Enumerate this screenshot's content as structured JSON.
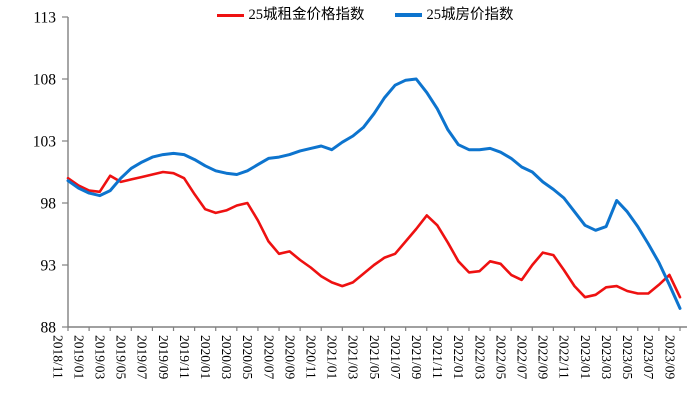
{
  "chart_data": {
    "type": "line",
    "title": "",
    "xlabel": "",
    "ylabel": "",
    "ylim": [
      88,
      113
    ],
    "y_ticks": [
      88,
      93,
      98,
      103,
      108,
      113
    ],
    "grid": false,
    "legend_position": "top-center",
    "axis_color": "#808080",
    "background_color": "#ffffff",
    "x_tick_labels": [
      "2018/11",
      "2019/01",
      "2019/03",
      "2019/05",
      "2019/07",
      "2019/09",
      "2019/11",
      "2020/01",
      "2020/03",
      "2020/05",
      "2020/07",
      "2020/09",
      "2020/11",
      "2021/01",
      "2021/03",
      "2021/05",
      "2021/07",
      "2021/09",
      "2021/11",
      "2022/01",
      "2022/03",
      "2022/05",
      "2022/07",
      "2022/09",
      "2022/11",
      "2023/01",
      "2023/03",
      "2023/05",
      "2023/07",
      "2023/09"
    ],
    "x_monthly": [
      "2018/11",
      "2018/12",
      "2019/01",
      "2019/02",
      "2019/03",
      "2019/04",
      "2019/05",
      "2019/06",
      "2019/07",
      "2019/08",
      "2019/09",
      "2019/10",
      "2019/11",
      "2019/12",
      "2020/01",
      "2020/02",
      "2020/03",
      "2020/04",
      "2020/05",
      "2020/06",
      "2020/07",
      "2020/08",
      "2020/09",
      "2020/10",
      "2020/11",
      "2020/12",
      "2021/01",
      "2021/02",
      "2021/03",
      "2021/04",
      "2021/05",
      "2021/06",
      "2021/07",
      "2021/08",
      "2021/09",
      "2021/10",
      "2021/11",
      "2021/12",
      "2022/01",
      "2022/02",
      "2022/03",
      "2022/04",
      "2022/05",
      "2022/06",
      "2022/07",
      "2022/08",
      "2022/09",
      "2022/10",
      "2022/11",
      "2022/12",
      "2023/01",
      "2023/02",
      "2023/03",
      "2023/04",
      "2023/05",
      "2023/06",
      "2023/07",
      "2023/08",
      "2023/09"
    ],
    "series": [
      {
        "name": "25城租金价格指数",
        "color": "#ee1111",
        "values": [
          100.0,
          99.4,
          99.0,
          98.9,
          100.2,
          99.7,
          99.9,
          100.1,
          100.3,
          100.5,
          100.4,
          100.0,
          98.7,
          97.5,
          97.2,
          97.4,
          97.8,
          98.0,
          96.6,
          94.9,
          93.9,
          94.1,
          93.4,
          92.8,
          92.1,
          91.6,
          91.3,
          91.6,
          92.3,
          93.0,
          93.6,
          93.9,
          94.9,
          95.9,
          97.0,
          96.2,
          94.8,
          93.3,
          92.4,
          92.5,
          93.3,
          93.1,
          92.2,
          91.8,
          93.0,
          94.0,
          93.8,
          92.6,
          91.3,
          90.4,
          90.6,
          91.2,
          91.3,
          90.9,
          90.7,
          90.7,
          91.4,
          92.2,
          90.4
        ]
      },
      {
        "name": "25城房价指数",
        "color": "#0d74ce",
        "values": [
          99.8,
          99.2,
          98.8,
          98.6,
          99.0,
          100.0,
          100.8,
          101.3,
          101.7,
          101.9,
          102.0,
          101.9,
          101.5,
          101.0,
          100.6,
          100.4,
          100.3,
          100.6,
          101.1,
          101.6,
          101.7,
          101.9,
          102.2,
          102.4,
          102.6,
          102.3,
          102.9,
          103.4,
          104.1,
          105.2,
          106.5,
          107.5,
          107.9,
          108.0,
          106.9,
          105.6,
          103.9,
          102.7,
          102.3,
          102.3,
          102.4,
          102.1,
          101.6,
          100.9,
          100.5,
          99.7,
          99.1,
          98.4,
          97.3,
          96.2,
          95.8,
          96.1,
          98.2,
          97.3,
          96.1,
          94.7,
          93.2,
          91.4,
          89.5
        ]
      }
    ]
  }
}
